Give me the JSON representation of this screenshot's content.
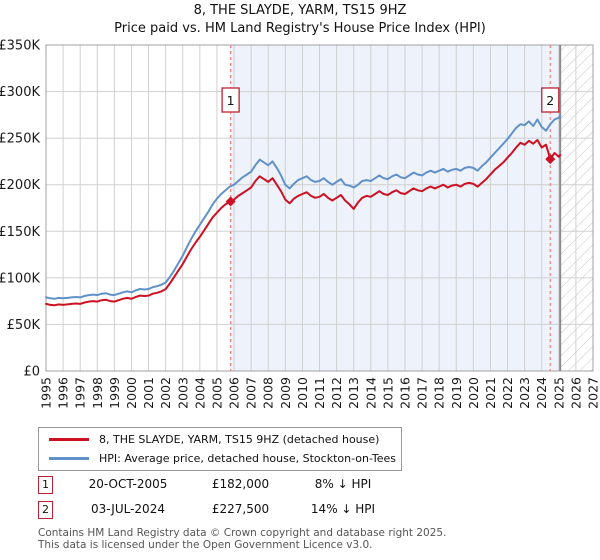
{
  "title": "8, THE SLAYDE, YARM, TS15 9HZ",
  "subtitle": "Price paid vs. HM Land Registry's House Price Index (HPI)",
  "chart_data": {
    "type": "line",
    "title": "8, THE SLAYDE, YARM, TS15 9HZ — Price paid vs. HPI",
    "xlabel": "",
    "ylabel": "Price (GBP)",
    "x_axis": {
      "min": 1995,
      "max": 2027,
      "tick_labels": [
        "1995",
        "1996",
        "1997",
        "1998",
        "1999",
        "2000",
        "2001",
        "2002",
        "2003",
        "2004",
        "2005",
        "2006",
        "2007",
        "2008",
        "2009",
        "2010",
        "2011",
        "2012",
        "2013",
        "2014",
        "2015",
        "2016",
        "2017",
        "2018",
        "2019",
        "2020",
        "2021",
        "2022",
        "2023",
        "2024",
        "2025",
        "2026",
        "2027"
      ]
    },
    "y_axis": {
      "min": 0,
      "max": 350000,
      "tick_step": 50000,
      "tick_labels": [
        "£0",
        "£50K",
        "£100K",
        "£150K",
        "£200K",
        "£250K",
        "£300K",
        "£350K"
      ]
    },
    "grid": true,
    "shaded_region": {
      "from": 2005.8,
      "to": 2025.08,
      "color": "#edf2fb"
    },
    "hatched_region": {
      "from": 2025.08,
      "to": 2027
    },
    "sale_lines": [
      {
        "label": "1",
        "x": 2005.8
      },
      {
        "label": "2",
        "x": 2024.5
      }
    ],
    "markers": [
      {
        "label": "1",
        "x": 2005.8,
        "y": 182000
      },
      {
        "label": "2",
        "x": 2024.5,
        "y": 227500
      }
    ],
    "series": [
      {
        "name": "HPI: Average price, detached house, Stockton-on-Tees",
        "color": "#6191c9",
        "points": [
          [
            1995,
            79000
          ],
          [
            1995.25,
            78000
          ],
          [
            1995.5,
            77500
          ],
          [
            1995.75,
            78500
          ],
          [
            1996,
            78000
          ],
          [
            1996.25,
            78500
          ],
          [
            1996.5,
            79000
          ],
          [
            1996.75,
            79500
          ],
          [
            1997,
            79000
          ],
          [
            1997.25,
            80500
          ],
          [
            1997.5,
            81500
          ],
          [
            1997.75,
            82000
          ],
          [
            1998,
            81500
          ],
          [
            1998.25,
            83000
          ],
          [
            1998.5,
            83500
          ],
          [
            1998.75,
            82000
          ],
          [
            1999,
            81500
          ],
          [
            1999.25,
            83000
          ],
          [
            1999.5,
            84500
          ],
          [
            1999.75,
            85500
          ],
          [
            2000,
            84500
          ],
          [
            2000.25,
            86500
          ],
          [
            2000.5,
            88000
          ],
          [
            2000.75,
            87500
          ],
          [
            2001,
            88000
          ],
          [
            2001.25,
            90000
          ],
          [
            2001.5,
            91000
          ],
          [
            2001.75,
            92500
          ],
          [
            2002,
            95000
          ],
          [
            2002.25,
            101000
          ],
          [
            2002.5,
            108000
          ],
          [
            2002.75,
            116000
          ],
          [
            2003,
            124000
          ],
          [
            2003.25,
            133000
          ],
          [
            2003.5,
            142000
          ],
          [
            2003.75,
            150000
          ],
          [
            2004,
            157000
          ],
          [
            2004.25,
            164000
          ],
          [
            2004.5,
            171000
          ],
          [
            2004.75,
            179000
          ],
          [
            2005,
            185000
          ],
          [
            2005.25,
            190000
          ],
          [
            2005.5,
            194000
          ],
          [
            2005.75,
            198000
          ],
          [
            2006,
            200000
          ],
          [
            2006.25,
            204000
          ],
          [
            2006.5,
            208000
          ],
          [
            2006.75,
            211000
          ],
          [
            2007,
            214000
          ],
          [
            2007.25,
            221000
          ],
          [
            2007.5,
            227000
          ],
          [
            2007.75,
            224000
          ],
          [
            2008,
            221000
          ],
          [
            2008.25,
            225000
          ],
          [
            2008.5,
            218000
          ],
          [
            2008.75,
            210000
          ],
          [
            2009,
            200000
          ],
          [
            2009.25,
            196000
          ],
          [
            2009.5,
            201000
          ],
          [
            2009.75,
            205000
          ],
          [
            2010,
            207000
          ],
          [
            2010.25,
            209000
          ],
          [
            2010.5,
            205000
          ],
          [
            2010.75,
            203000
          ],
          [
            2011,
            204000
          ],
          [
            2011.25,
            207000
          ],
          [
            2011.5,
            203000
          ],
          [
            2011.75,
            200000
          ],
          [
            2012,
            203000
          ],
          [
            2012.25,
            206000
          ],
          [
            2012.5,
            200000
          ],
          [
            2012.75,
            199000
          ],
          [
            2013,
            197000
          ],
          [
            2013.25,
            200000
          ],
          [
            2013.5,
            204000
          ],
          [
            2013.75,
            205000
          ],
          [
            2014,
            204000
          ],
          [
            2014.25,
            207000
          ],
          [
            2014.5,
            210000
          ],
          [
            2014.75,
            207000
          ],
          [
            2015,
            206000
          ],
          [
            2015.25,
            209000
          ],
          [
            2015.5,
            211000
          ],
          [
            2015.75,
            208000
          ],
          [
            2016,
            207000
          ],
          [
            2016.25,
            210000
          ],
          [
            2016.5,
            213000
          ],
          [
            2016.75,
            211000
          ],
          [
            2017,
            210000
          ],
          [
            2017.25,
            213000
          ],
          [
            2017.5,
            215000
          ],
          [
            2017.75,
            213000
          ],
          [
            2018,
            215000
          ],
          [
            2018.25,
            217000
          ],
          [
            2018.5,
            214000
          ],
          [
            2018.75,
            216000
          ],
          [
            2019,
            217000
          ],
          [
            2019.25,
            215000
          ],
          [
            2019.5,
            218000
          ],
          [
            2019.75,
            219000
          ],
          [
            2020,
            218000
          ],
          [
            2020.25,
            215000
          ],
          [
            2020.5,
            220000
          ],
          [
            2020.75,
            224000
          ],
          [
            2021,
            229000
          ],
          [
            2021.25,
            234000
          ],
          [
            2021.5,
            239000
          ],
          [
            2021.75,
            244000
          ],
          [
            2022,
            249000
          ],
          [
            2022.25,
            255000
          ],
          [
            2022.5,
            261000
          ],
          [
            2022.75,
            265000
          ],
          [
            2023,
            264000
          ],
          [
            2023.25,
            268000
          ],
          [
            2023.5,
            263000
          ],
          [
            2023.75,
            270000
          ],
          [
            2024,
            262000
          ],
          [
            2024.25,
            258000
          ],
          [
            2024.5,
            265000
          ],
          [
            2024.75,
            270000
          ],
          [
            2025,
            272000
          ],
          [
            2025.08,
            274000
          ]
        ]
      },
      {
        "name": "8, THE SLAYDE, YARM, TS15 9HZ (detached house)",
        "color": "#cc1122",
        "points": [
          [
            1995,
            72000
          ],
          [
            1995.25,
            71000
          ],
          [
            1995.5,
            70500
          ],
          [
            1995.75,
            71500
          ],
          [
            1996,
            71000
          ],
          [
            1996.25,
            71500
          ],
          [
            1996.5,
            72000
          ],
          [
            1996.75,
            72500
          ],
          [
            1997,
            72000
          ],
          [
            1997.25,
            73500
          ],
          [
            1997.5,
            74500
          ],
          [
            1997.75,
            75000
          ],
          [
            1998,
            74500
          ],
          [
            1998.25,
            76000
          ],
          [
            1998.5,
            76500
          ],
          [
            1998.75,
            75000
          ],
          [
            1999,
            74500
          ],
          [
            1999.25,
            76000
          ],
          [
            1999.5,
            77500
          ],
          [
            1999.75,
            78500
          ],
          [
            2000,
            77500
          ],
          [
            2000.25,
            79500
          ],
          [
            2000.5,
            81000
          ],
          [
            2000.75,
            80500
          ],
          [
            2001,
            81000
          ],
          [
            2001.25,
            83000
          ],
          [
            2001.5,
            84000
          ],
          [
            2001.75,
            85500
          ],
          [
            2002,
            88000
          ],
          [
            2002.25,
            94000
          ],
          [
            2002.5,
            101000
          ],
          [
            2002.75,
            108000
          ],
          [
            2003,
            115000
          ],
          [
            2003.25,
            123000
          ],
          [
            2003.5,
            131000
          ],
          [
            2003.75,
            138000
          ],
          [
            2004,
            144000
          ],
          [
            2004.25,
            151000
          ],
          [
            2004.5,
            158000
          ],
          [
            2004.75,
            165000
          ],
          [
            2005,
            170000
          ],
          [
            2005.25,
            175000
          ],
          [
            2005.5,
            179000
          ],
          [
            2005.8,
            182000
          ],
          [
            2006,
            184000
          ],
          [
            2006.25,
            188000
          ],
          [
            2006.5,
            191000
          ],
          [
            2006.75,
            194000
          ],
          [
            2007,
            197000
          ],
          [
            2007.25,
            204000
          ],
          [
            2007.5,
            209000
          ],
          [
            2007.75,
            206000
          ],
          [
            2008,
            203000
          ],
          [
            2008.25,
            207000
          ],
          [
            2008.5,
            200000
          ],
          [
            2008.75,
            193000
          ],
          [
            2009,
            184000
          ],
          [
            2009.25,
            180000
          ],
          [
            2009.5,
            185000
          ],
          [
            2009.75,
            188000
          ],
          [
            2010,
            190000
          ],
          [
            2010.25,
            192000
          ],
          [
            2010.5,
            188000
          ],
          [
            2010.75,
            186000
          ],
          [
            2011,
            187000
          ],
          [
            2011.25,
            190000
          ],
          [
            2011.5,
            186000
          ],
          [
            2011.75,
            183000
          ],
          [
            2012,
            186000
          ],
          [
            2012.25,
            189000
          ],
          [
            2012.5,
            183000
          ],
          [
            2012.75,
            179000
          ],
          [
            2013,
            174000
          ],
          [
            2013.25,
            181000
          ],
          [
            2013.5,
            186000
          ],
          [
            2013.75,
            188000
          ],
          [
            2014,
            187000
          ],
          [
            2014.25,
            190000
          ],
          [
            2014.5,
            193000
          ],
          [
            2014.75,
            190000
          ],
          [
            2015,
            189000
          ],
          [
            2015.25,
            192000
          ],
          [
            2015.5,
            194000
          ],
          [
            2015.75,
            191000
          ],
          [
            2016,
            190000
          ],
          [
            2016.25,
            193000
          ],
          [
            2016.5,
            196000
          ],
          [
            2016.75,
            194000
          ],
          [
            2017,
            193000
          ],
          [
            2017.25,
            196000
          ],
          [
            2017.5,
            198000
          ],
          [
            2017.75,
            196000
          ],
          [
            2018,
            198000
          ],
          [
            2018.25,
            200000
          ],
          [
            2018.5,
            197000
          ],
          [
            2018.75,
            199000
          ],
          [
            2019,
            200000
          ],
          [
            2019.25,
            198000
          ],
          [
            2019.5,
            201000
          ],
          [
            2019.75,
            202000
          ],
          [
            2020,
            201000
          ],
          [
            2020.25,
            198000
          ],
          [
            2020.5,
            202000
          ],
          [
            2020.75,
            206000
          ],
          [
            2021,
            211000
          ],
          [
            2021.25,
            216000
          ],
          [
            2021.5,
            220000
          ],
          [
            2021.75,
            224000
          ],
          [
            2022,
            229000
          ],
          [
            2022.25,
            234000
          ],
          [
            2022.5,
            240000
          ],
          [
            2022.75,
            245000
          ],
          [
            2023,
            243000
          ],
          [
            2023.25,
            247000
          ],
          [
            2023.5,
            244000
          ],
          [
            2023.75,
            248000
          ],
          [
            2024,
            240000
          ],
          [
            2024.25,
            243000
          ],
          [
            2024.5,
            227500
          ],
          [
            2024.75,
            234000
          ],
          [
            2025,
            230000
          ],
          [
            2025.08,
            232000
          ]
        ]
      }
    ]
  },
  "legend": [
    {
      "label": "8, THE SLAYDE, YARM, TS15 9HZ (detached house)",
      "color": "#cc1122"
    },
    {
      "label": "HPI: Average price, detached house, Stockton-on-Tees",
      "color": "#6191c9"
    }
  ],
  "annotations": [
    {
      "num": "1",
      "date": "20-OCT-2005",
      "price": "£182,000",
      "hpi": "8% ↓ HPI"
    },
    {
      "num": "2",
      "date": "03-JUL-2024",
      "price": "£227,500",
      "hpi": "14% ↓ HPI"
    }
  ],
  "footer": {
    "line1": "Contains HM Land Registry data © Crown copyright and database right 2025.",
    "line2": "This data is licensed under the Open Government Licence v3.0."
  }
}
